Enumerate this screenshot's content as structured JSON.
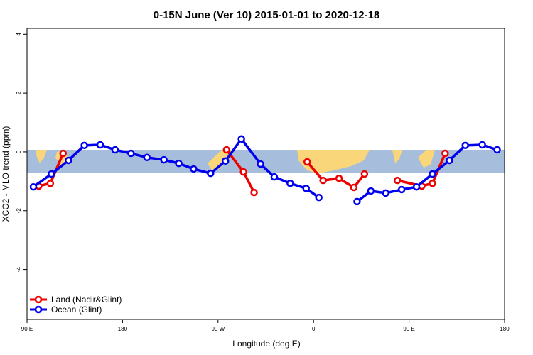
{
  "chart_data": {
    "type": "line",
    "title": "0-15N June (Ver 10)   2015-01-01 to 2020-12-18",
    "x_label": "Longitude (deg E)",
    "y_label": "XCO2 - MLO trend (ppm)",
    "xlim": [
      90,
      540
    ],
    "ylim": [
      -5.7,
      4.2
    ],
    "xticks": [
      {
        "value": 90,
        "label": "90 E"
      },
      180,
      {
        "value": 270,
        "label": "90 W"
      },
      {
        "value": 360,
        "label": "0"
      },
      {
        "value": 450,
        "label": "90 E"
      },
      {
        "value": 540,
        "label": "180"
      }
    ],
    "yticks": [
      -4,
      -2,
      0,
      2,
      4
    ],
    "legend": "bottom-left",
    "series": [
      {
        "name": "Land (Nadir&Glint)",
        "color": "#ee0000",
        "x": [
          101,
          112,
          124,
          null,
          278,
          294,
          304,
          null,
          354,
          369,
          384,
          398,
          408,
          null,
          439,
          462,
          472,
          484
        ],
        "values": [
          -1.16,
          -1.07,
          -0.05,
          null,
          0.07,
          -0.68,
          -1.38,
          null,
          -0.34,
          -0.97,
          -0.9,
          -1.21,
          -0.75,
          null,
          -0.97,
          -1.16,
          -1.07,
          -0.05
        ]
      },
      {
        "name": "Ocean (Glint)",
        "color": "#0000ee",
        "x": [
          96,
          113,
          129,
          144,
          159,
          173,
          188,
          203,
          219,
          233,
          247,
          263,
          277,
          292,
          310,
          323,
          338,
          353,
          365,
          null,
          401,
          414,
          428,
          443,
          457,
          472,
          488,
          503,
          519,
          533
        ],
        "values": [
          -1.19,
          -0.75,
          -0.29,
          0.22,
          0.24,
          0.07,
          -0.05,
          -0.19,
          -0.27,
          -0.39,
          -0.58,
          -0.73,
          -0.31,
          0.44,
          -0.41,
          -0.85,
          -1.07,
          -1.24,
          -1.55,
          null,
          -1.69,
          -1.33,
          -1.4,
          -1.28,
          -1.19,
          -0.75,
          -0.29,
          0.22,
          0.24,
          0.07
        ]
      }
    ]
  }
}
